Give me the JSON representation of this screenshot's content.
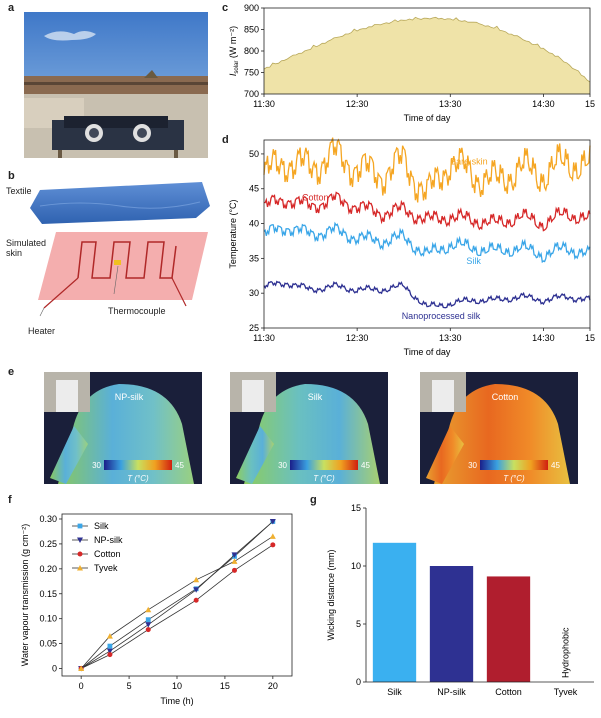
{
  "panels": {
    "a": "a",
    "b": "b",
    "c": "c",
    "d": "d",
    "e": "e",
    "f": "f",
    "g": "g"
  },
  "schematic": {
    "textile": "Textile",
    "skin": "Simulated skin",
    "heater": "Heater",
    "thermocouple": "Thermocouple"
  },
  "thermal": [
    {
      "label": "NP-silk",
      "scale_min": "30",
      "scale_max": "45",
      "scale_unit": "T (°C)"
    },
    {
      "label": "Silk",
      "scale_min": "30",
      "scale_max": "45",
      "scale_unit": "T (°C)"
    },
    {
      "label": "Cotton",
      "scale_min": "30",
      "scale_max": "45",
      "scale_unit": "T (°C)"
    }
  ],
  "colors": {
    "solar_fill": "#efe3a8",
    "solar_line": "#b8a85a",
    "bare": "#f5a623",
    "cotton": "#d62828",
    "silk": "#3aa6e8",
    "np": "#2e3192",
    "tyvek": "#f0b030",
    "bar_silk": "#3ab0f0",
    "bar_np": "#2e3192",
    "bar_cotton": "#b01e2e"
  },
  "chart_data": [
    {
      "id": "c",
      "type": "area",
      "xlabel": "Time of day",
      "ylabel_main": "I",
      "ylabel_sub": "solar",
      "ylabel_unit": " (W m⁻²)",
      "xticks": [
        "11:30",
        "12:30",
        "13:30",
        "14:30",
        "15"
      ],
      "ylim": [
        700,
        900
      ],
      "yticks": [
        700,
        750,
        800,
        850,
        900
      ],
      "x_hours": [
        11.5,
        11.75,
        12.0,
        12.25,
        12.5,
        12.75,
        13.0,
        13.25,
        13.5,
        13.75,
        14.0,
        14.25,
        14.5,
        14.75,
        15.0
      ],
      "values": [
        758,
        782,
        805,
        828,
        848,
        862,
        872,
        876,
        874,
        866,
        852,
        830,
        805,
        772,
        728
      ]
    },
    {
      "id": "d",
      "type": "line",
      "xlabel": "Time of day",
      "ylabel": "Temperature (°C)",
      "xticks": [
        "11:30",
        "12:30",
        "13:30",
        "14:30",
        "15"
      ],
      "ylim": [
        25,
        52
      ],
      "yticks": [
        25,
        30,
        35,
        40,
        45,
        50
      ],
      "series": [
        {
          "name": "Bare skin",
          "base": [
            47,
            49,
            48,
            50,
            48,
            47,
            49,
            44,
            49,
            47,
            46,
            48,
            47,
            49,
            48
          ],
          "amp": 2.6
        },
        {
          "name": "Cotton",
          "base": [
            42.5,
            43.5,
            42.5,
            43.5,
            42.5,
            41.5,
            42,
            40.5,
            41,
            40.5,
            40,
            41,
            40,
            41.5,
            40.5
          ],
          "amp": 1.1
        },
        {
          "name": "Silk",
          "base": [
            38.5,
            39.5,
            38.5,
            39,
            38,
            37.5,
            38,
            35.5,
            37,
            36.5,
            36,
            36.5,
            35.5,
            36.5,
            35.5
          ],
          "amp": 1.0
        },
        {
          "name": "Nanoprocessed silk",
          "base": [
            31,
            31.5,
            30.5,
            31,
            30.5,
            30.5,
            31,
            28,
            28.5,
            29,
            29,
            29.5,
            29,
            29.5,
            29
          ],
          "amp": 0.5
        }
      ]
    },
    {
      "id": "f",
      "type": "line",
      "xlabel": "Time (h)",
      "ylabel": "Water vapour transmission (g cm⁻²)",
      "xlim": [
        -2,
        22
      ],
      "xticks": [
        0,
        5,
        10,
        15,
        20
      ],
      "ylim": [
        -0.015,
        0.31
      ],
      "yticks": [
        0,
        0.05,
        0.1,
        0.15,
        0.2,
        0.25,
        0.3
      ],
      "ytick_labels": [
        "0",
        "0.05",
        "0.10",
        "0.15",
        "0.20",
        "0.25",
        "0.30"
      ],
      "x": [
        0,
        3,
        7,
        12,
        16,
        20
      ],
      "series": [
        {
          "name": "Silk",
          "values": [
            0,
            0.045,
            0.098,
            0.16,
            0.225,
            0.295
          ]
        },
        {
          "name": "NP-silk",
          "values": [
            0,
            0.035,
            0.088,
            0.158,
            0.228,
            0.295
          ]
        },
        {
          "name": "Cotton",
          "values": [
            0,
            0.028,
            0.078,
            0.137,
            0.197,
            0.248
          ]
        },
        {
          "name": "Tyvek",
          "values": [
            0,
            0.065,
            0.118,
            0.178,
            0.215,
            0.265
          ]
        }
      ]
    },
    {
      "id": "g",
      "type": "bar",
      "ylabel": "Wicking distance (mm)",
      "ylim": [
        0,
        15
      ],
      "yticks": [
        0,
        5,
        10,
        15
      ],
      "categories": [
        "Silk",
        "NP-silk",
        "Cotton",
        "Tyvek"
      ],
      "values": [
        12.0,
        10.0,
        9.1,
        0
      ],
      "annotation": "Hydrophobic"
    }
  ]
}
